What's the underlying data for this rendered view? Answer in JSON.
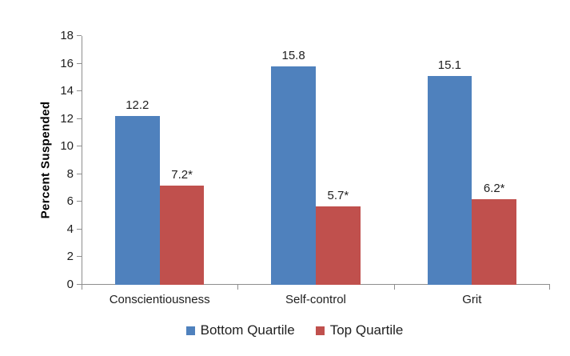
{
  "chart_data": {
    "type": "bar",
    "categories": [
      "Conscientiousness",
      "Self-control",
      "Grit"
    ],
    "series": [
      {
        "name": "Bottom Quartile",
        "color": "#4F81BD",
        "values": [
          12.2,
          15.8,
          15.1
        ],
        "value_labels": [
          "12.2",
          "15.8",
          "15.1"
        ]
      },
      {
        "name": "Top Quartile",
        "color": "#C0504D",
        "values": [
          7.2,
          5.7,
          6.2
        ],
        "value_labels": [
          "7.2*",
          "5.7*",
          "6.2*"
        ]
      }
    ],
    "xlabel": "",
    "ylabel": "Percent Suspended",
    "ylim": [
      0,
      18
    ],
    "yticks": [
      0,
      2,
      4,
      6,
      8,
      10,
      12,
      14,
      16,
      18
    ],
    "grid": false,
    "legend_position": "bottom"
  }
}
